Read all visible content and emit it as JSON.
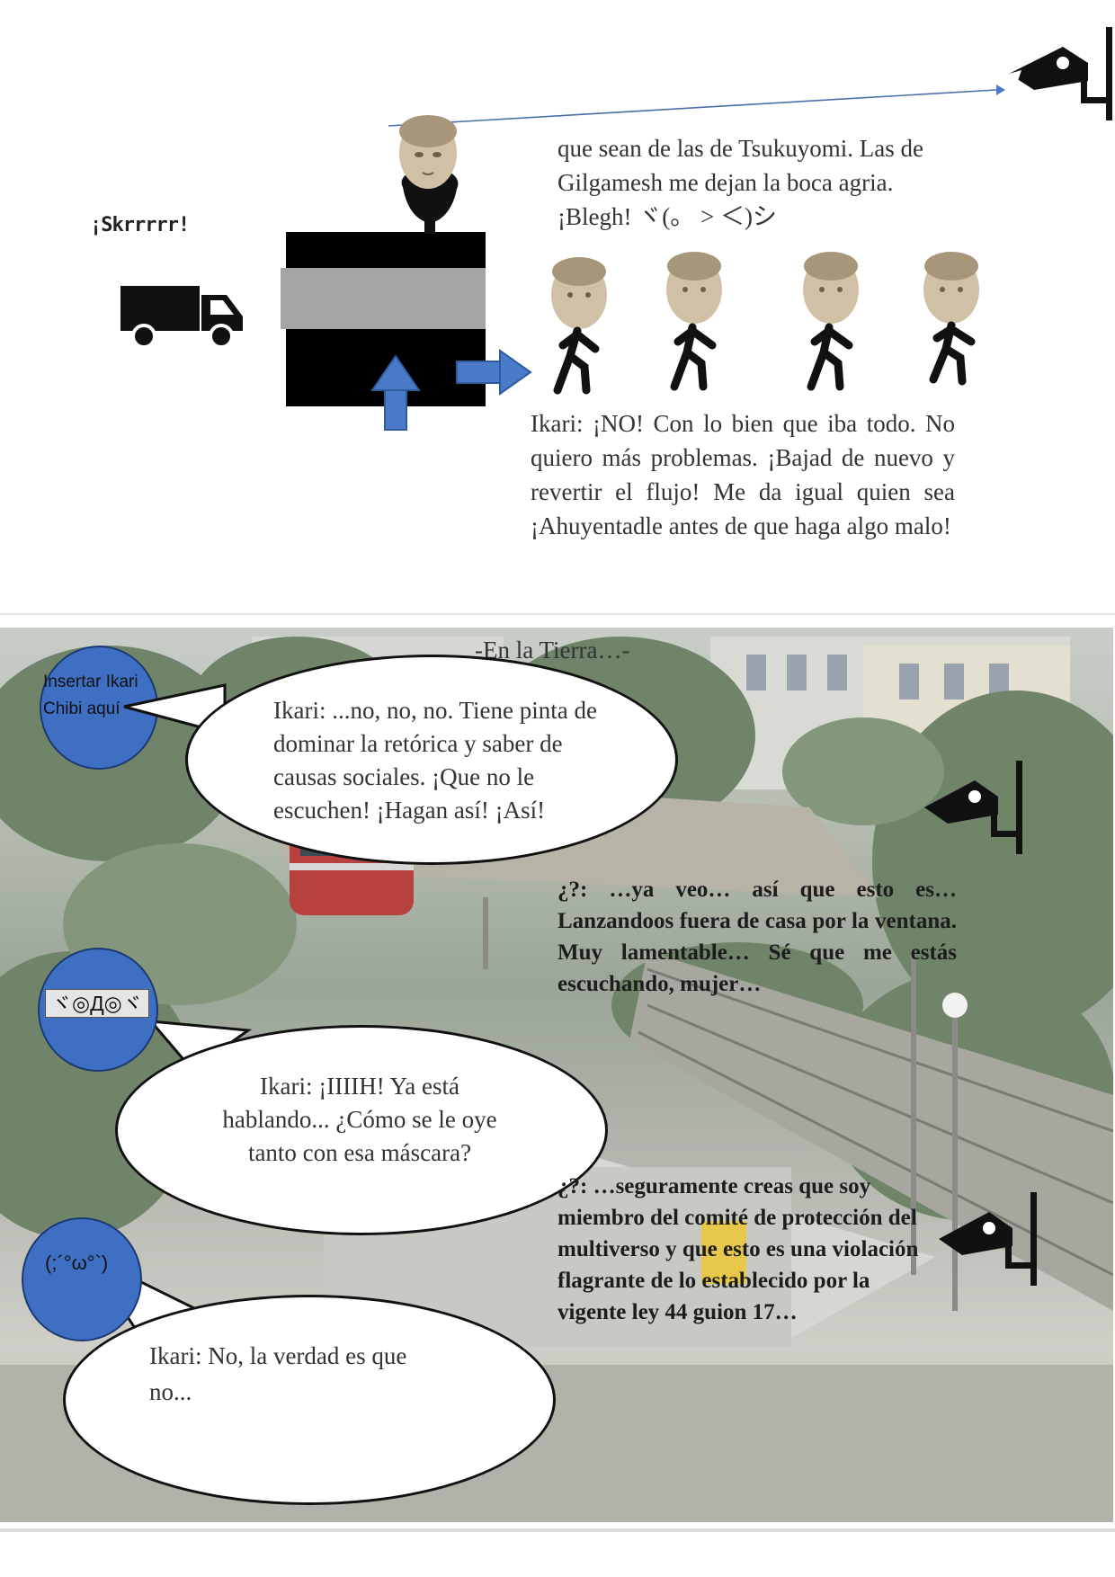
{
  "top_panel": {
    "sound_effect": "¡Skrrrrr!",
    "narration_1": "que sean de las de Tsukuyomi. Las de Gilgamesh me dejan la boca agria. ¡Blegh! ヾ(。 > ＜)シ",
    "narration_2": "Ikari: ¡NO! Con lo bien que iba todo. No quiero más problemas. ¡Bajad de nuevo y revertir el flujo! Me da igual quien sea ¡Ahuyentadle antes de que haga algo malo!",
    "icons": [
      "truck-icon",
      "security-camera-icon",
      "statue-head-icon",
      "walking-figure-icon",
      "arrow-up-icon",
      "arrow-right-icon"
    ],
    "colors": {
      "arrow": "#4a7bc8",
      "block": "#000000",
      "stripe": "#a5a5a5"
    }
  },
  "bottom_panel": {
    "caption": "-En la Tierra…-",
    "avatar_1_label": "Insertar Ikari Chibi aquí",
    "avatar_2_label": "ヾ◎Д◎ヾ",
    "avatar_3_label": "(;´°ω°`)",
    "bubble_1": "Ikari: ...no, no, no. Tiene pinta de dominar la retórica y saber de causas sociales. ¡Que no le escuchen! ¡Hagan así! ¡Así!",
    "bubble_2": "Ikari: ¡IIIIH! Ya está hablando... ¿Cómo se le oye tanto con esa máscara?",
    "bubble_3": "Ikari: No, la verdad es que no...",
    "speaker_1": "¿?: …ya veo… así que esto es… Lanzandoos fuera de casa por la ventana. Muy lamentable… Sé que me estás escuchando, mujer…",
    "speaker_2": "¿?: …seguramente creas que soy miembro del comité de protección del multiverso y que esto es una violación flagrante de lo establecido por la vigente ley 44 guion 17…",
    "colors": {
      "avatar": "#3f6fc2",
      "bubble": "#ffffff"
    }
  }
}
